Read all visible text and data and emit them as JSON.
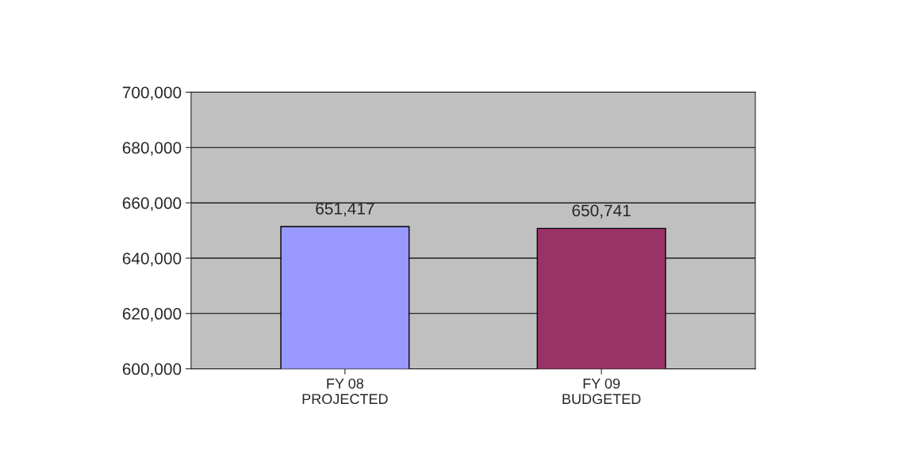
{
  "chart_data": {
    "type": "bar",
    "categories": [
      "FY 08\nPROJECTED",
      "FY 09\nBUDGETED"
    ],
    "values": [
      651417,
      650741
    ],
    "colors": [
      "#9999ff",
      "#993366"
    ],
    "value_labels": [
      "651,417",
      "650,741"
    ],
    "ylim": [
      600000,
      700000
    ],
    "yticks": [
      {
        "value": 600000,
        "label": "600,000"
      },
      {
        "value": 620000,
        "label": "620,000"
      },
      {
        "value": 640000,
        "label": "640,000"
      },
      {
        "value": 660000,
        "label": "660,000"
      },
      {
        "value": 680000,
        "label": "680,000"
      },
      {
        "value": 700000,
        "label": "700,000"
      }
    ],
    "grid": "y"
  }
}
